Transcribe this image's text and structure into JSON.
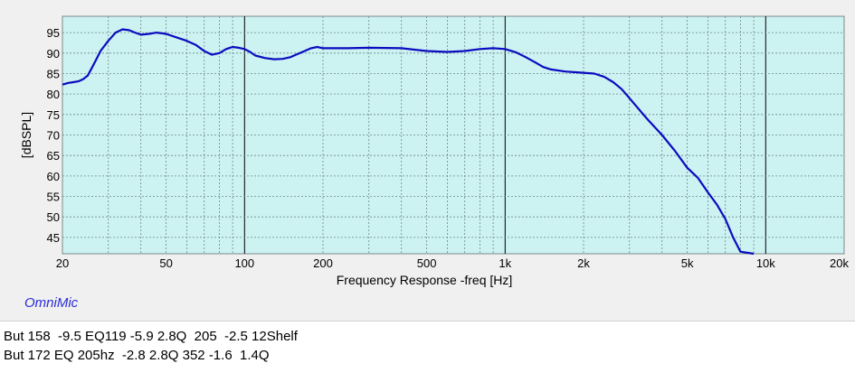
{
  "chart_data": {
    "type": "line",
    "title": "",
    "xlabel": "Frequency Response -freq [Hz]",
    "ylabel": "[dBSPL]",
    "x_scale": "log",
    "xlim": [
      20,
      20000
    ],
    "ylim": [
      41,
      99
    ],
    "grid": true,
    "x_ticks": [
      {
        "value": 20,
        "label": "20"
      },
      {
        "value": 50,
        "label": "50"
      },
      {
        "value": 100,
        "label": "100"
      },
      {
        "value": 200,
        "label": "200"
      },
      {
        "value": 500,
        "label": "500"
      },
      {
        "value": 1000,
        "label": "1k"
      },
      {
        "value": 2000,
        "label": "2k"
      },
      {
        "value": 5000,
        "label": "5k"
      },
      {
        "value": 10000,
        "label": "10k"
      },
      {
        "value": 20000,
        "label": "20k"
      }
    ],
    "y_ticks": [
      45,
      50,
      55,
      60,
      65,
      70,
      75,
      80,
      85,
      90,
      95
    ],
    "colors": {
      "plot_bg": "#ccf2f2",
      "line": "#0b0bbf",
      "grid": "#6f8a8a",
      "decade": "#000000"
    },
    "series": [
      {
        "x": [
          20,
          21,
          22,
          23,
          24,
          25,
          26,
          27,
          28,
          30,
          32,
          34,
          36,
          38,
          40,
          43,
          46,
          50,
          55,
          60,
          65,
          70,
          75,
          80,
          85,
          90,
          95,
          100,
          105,
          110,
          120,
          130,
          140,
          150,
          160,
          170,
          180,
          190,
          200,
          250,
          300,
          400,
          500,
          600,
          700,
          800,
          900,
          1000,
          1100,
          1200,
          1300,
          1400,
          1500,
          1700,
          2000,
          2200,
          2400,
          2600,
          2800,
          3000,
          3500,
          4000,
          4500,
          5000,
          5500,
          6000,
          6500,
          7000,
          7500,
          8000,
          9000
        ],
        "y": [
          82.3,
          82.7,
          82.9,
          83.1,
          83.6,
          84.5,
          86.5,
          88.5,
          90.5,
          93,
          95,
          95.8,
          95.6,
          95,
          94.5,
          94.7,
          95,
          94.7,
          93.8,
          93,
          92,
          90.5,
          89.6,
          90,
          91,
          91.5,
          91.3,
          91,
          90.3,
          89.4,
          88.8,
          88.5,
          88.6,
          89,
          89.8,
          90.5,
          91.2,
          91.5,
          91.2,
          91.2,
          91.3,
          91.2,
          90.5,
          90.3,
          90.5,
          91,
          91.2,
          91,
          90.2,
          89,
          87.8,
          86.6,
          86,
          85.5,
          85.2,
          85,
          84.2,
          82.9,
          81.2,
          79,
          74,
          70,
          66,
          62,
          59.5,
          56,
          53,
          49.5,
          45,
          41.5,
          41
        ]
      }
    ]
  },
  "brand": "OmniMic",
  "notes": [
    "But 158  -9.5 EQ119 -5.9 2.8Q  205  -2.5 12Shelf",
    "But 172 EQ 205hz  -2.8 2.8Q 352 -1.6  1.4Q"
  ]
}
